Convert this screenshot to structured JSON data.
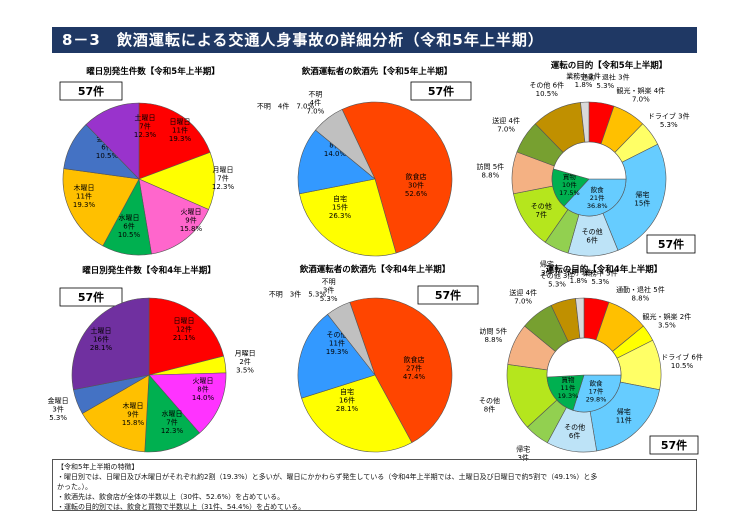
{
  "header": {
    "title": "8－3　飲酒運転による交通人身事故の詳細分析（令和5年上半期）"
  },
  "chart_data": [
    {
      "type": "pie",
      "title": "曜日別発生件数【令和5年上半期】",
      "total_label": "57件",
      "slices": [
        {
          "name": "日曜日",
          "count": "11件",
          "percent": "19.3%",
          "value": 11,
          "color": "#ff0000"
        },
        {
          "name": "月曜日",
          "count": "7件",
          "percent": "12.3%",
          "value": 7,
          "color": "#ffff00"
        },
        {
          "name": "火曜日",
          "count": "9件",
          "percent": "15.8%",
          "value": 9,
          "color": "#ff66cc"
        },
        {
          "name": "水曜日",
          "count": "6件",
          "percent": "10.5%",
          "value": 6,
          "color": "#00b050"
        },
        {
          "name": "木曜日",
          "count": "11件",
          "percent": "19.3%",
          "value": 11,
          "color": "#ffc000"
        },
        {
          "name": "金曜日",
          "count": "6件",
          "percent": "10.5%",
          "value": 6,
          "color": "#4472c4"
        },
        {
          "name": "土曜日",
          "count": "7件",
          "percent": "12.3%",
          "value": 7,
          "color": "#9933cc"
        }
      ]
    },
    {
      "type": "pie",
      "title": "飲酒運転者の飲酒先【令和5年上半期】",
      "total_label": "57件",
      "slices": [
        {
          "name": "飲食店",
          "count": "30件",
          "percent": "52.6%",
          "value": 30,
          "color": "#ff4500"
        },
        {
          "name": "自宅",
          "count": "15件",
          "percent": "26.3%",
          "value": 15,
          "color": "#ffff00"
        },
        {
          "name": "その他",
          "count": "8件",
          "percent": "14.0%",
          "value": 8,
          "color": "#3399ff"
        },
        {
          "name": "不明",
          "count": "4件",
          "percent": "7.0%",
          "value": 4,
          "color": "#c0c0c0"
        }
      ]
    },
    {
      "type": "pie",
      "title": "運転の目的【令和5年上半期】",
      "total_label": "57件",
      "outer": [
        {
          "name": "通勤・退社",
          "count": "3件",
          "percent": "5.3%",
          "value": 3,
          "color": "#ff0000"
        },
        {
          "name": "観光・娯楽",
          "count": "4件",
          "percent": "7.0%",
          "value": 4,
          "color": "#ffc000"
        },
        {
          "name": "ドライブ",
          "count": "3件",
          "percent": "5.3%",
          "value": 3,
          "color": "#ffff66"
        },
        {
          "name": "帰宅",
          "count": "15件",
          "percent": "",
          "value": 15,
          "color": "#66ccff"
        },
        {
          "name": "その他",
          "count": "6件",
          "percent": "",
          "value": 6,
          "color": "#bde3f7"
        },
        {
          "name": "帰宅",
          "count": "3件",
          "percent": "",
          "value": 3,
          "color": "#92d050"
        },
        {
          "name": "その他",
          "count": "7件",
          "percent": "",
          "value": 7,
          "color": "#b5e61d"
        },
        {
          "name": "訪問",
          "count": "5件",
          "percent": "8.8%",
          "value": 5,
          "color": "#f4b183"
        },
        {
          "name": "送迎",
          "count": "4件",
          "percent": "7.0%",
          "value": 4,
          "color": "#77a030"
        },
        {
          "name": "その他",
          "count": "6件",
          "percent": "10.5%",
          "value": 6,
          "color": "#c09000"
        },
        {
          "name": "業務中",
          "count": "1件",
          "percent": "1.8%",
          "value": 1,
          "color": "#d9d9d9"
        }
      ],
      "inner": [
        {
          "name": "飲食",
          "count": "21件",
          "percent": "36.8%",
          "value": 21,
          "color": "#66ccff"
        },
        {
          "name": "買物",
          "count": "10件",
          "percent": "17.5%",
          "value": 10,
          "color": "#00b050"
        }
      ]
    },
    {
      "type": "pie",
      "title": "曜日別発生件数【令和4年上半期】",
      "total_label": "57件",
      "slices": [
        {
          "name": "日曜日",
          "count": "12件",
          "percent": "21.1%",
          "value": 12,
          "color": "#ff0000"
        },
        {
          "name": "月曜日",
          "count": "2件",
          "percent": "3.5%",
          "value": 2,
          "color": "#ffff00"
        },
        {
          "name": "火曜日",
          "count": "8件",
          "percent": "14.0%",
          "value": 8,
          "color": "#ff33ff"
        },
        {
          "name": "水曜日",
          "count": "7件",
          "percent": "12.3%",
          "value": 7,
          "color": "#00b050"
        },
        {
          "name": "木曜日",
          "count": "9件",
          "percent": "15.8%",
          "value": 9,
          "color": "#ffc000"
        },
        {
          "name": "金曜日",
          "count": "3件",
          "percent": "5.3%",
          "value": 3,
          "color": "#4472c4"
        },
        {
          "name": "土曜日",
          "count": "16件",
          "percent": "28.1%",
          "value": 16,
          "color": "#7030a0"
        }
      ]
    },
    {
      "type": "pie",
      "title": "飲酒運転者の飲酒先【令和4年上半期】",
      "total_label": "57件",
      "slices": [
        {
          "name": "飲食店",
          "count": "27件",
          "percent": "47.4%",
          "value": 27,
          "color": "#ff4500"
        },
        {
          "name": "自宅",
          "count": "16件",
          "percent": "28.1%",
          "value": 16,
          "color": "#ffff00"
        },
        {
          "name": "その他",
          "count": "11件",
          "percent": "19.3%",
          "value": 11,
          "color": "#3399ff"
        },
        {
          "name": "不明",
          "count": "3件",
          "percent": "5.3%",
          "value": 3,
          "color": "#c0c0c0"
        }
      ]
    },
    {
      "type": "pie",
      "title": "運転の目的【令和4年上半期】",
      "total_label": "57件",
      "outer": [
        {
          "name": "業務中",
          "count": "3件",
          "percent": "5.3%",
          "value": 3,
          "color": "#ff0000"
        },
        {
          "name": "通勤・退社",
          "count": "5件",
          "percent": "8.8%",
          "value": 5,
          "color": "#ffc000"
        },
        {
          "name": "観光・娯楽",
          "count": "2件",
          "percent": "3.5%",
          "value": 2,
          "color": "#ffff00"
        },
        {
          "name": "ドライブ",
          "count": "6件",
          "percent": "10.5%",
          "value": 6,
          "color": "#ffff66"
        },
        {
          "name": "帰宅",
          "count": "11件",
          "percent": "",
          "value": 11,
          "color": "#66ccff"
        },
        {
          "name": "その他",
          "count": "6件",
          "percent": "",
          "value": 6,
          "color": "#bde3f7"
        },
        {
          "name": "帰宅",
          "count": "3件",
          "percent": "",
          "value": 3,
          "color": "#92d050"
        },
        {
          "name": "その他",
          "count": "8件",
          "percent": "",
          "value": 8,
          "color": "#b5e61d"
        },
        {
          "name": "訪問",
          "count": "5件",
          "percent": "8.8%",
          "value": 5,
          "color": "#f4b183"
        },
        {
          "name": "送迎",
          "count": "4件",
          "percent": "7.0%",
          "value": 4,
          "color": "#77a030"
        },
        {
          "name": "その他",
          "count": "3件",
          "percent": "5.3%",
          "value": 3,
          "color": "#c09000"
        },
        {
          "name": "不明",
          "count": "1件",
          "percent": "1.8%",
          "value": 1,
          "color": "#d9d9d9"
        }
      ],
      "inner": [
        {
          "name": "飲食",
          "count": "17件",
          "percent": "29.8%",
          "value": 17,
          "color": "#66ccff"
        },
        {
          "name": "買物",
          "count": "11件",
          "percent": "19.3%",
          "value": 11,
          "color": "#00b050"
        }
      ]
    }
  ],
  "notes": {
    "heading": "【令和5年上半期の特徴】",
    "lines": [
      "・曜日別では、日曜日及び木曜日がそれぞれ約2割（19.3%）と多いが、曜日にかかわらず発生している（令和4年上半期では、土曜日及び日曜日で約5割で（49.1%）と多",
      "かった。）。",
      "・飲酒先は、飲食店が全体の半数以上（30件、52.6%）を占めている。",
      "・運転の目的別では、飲食と買物で半数以上（31件、54.4%）を占めている。"
    ]
  }
}
